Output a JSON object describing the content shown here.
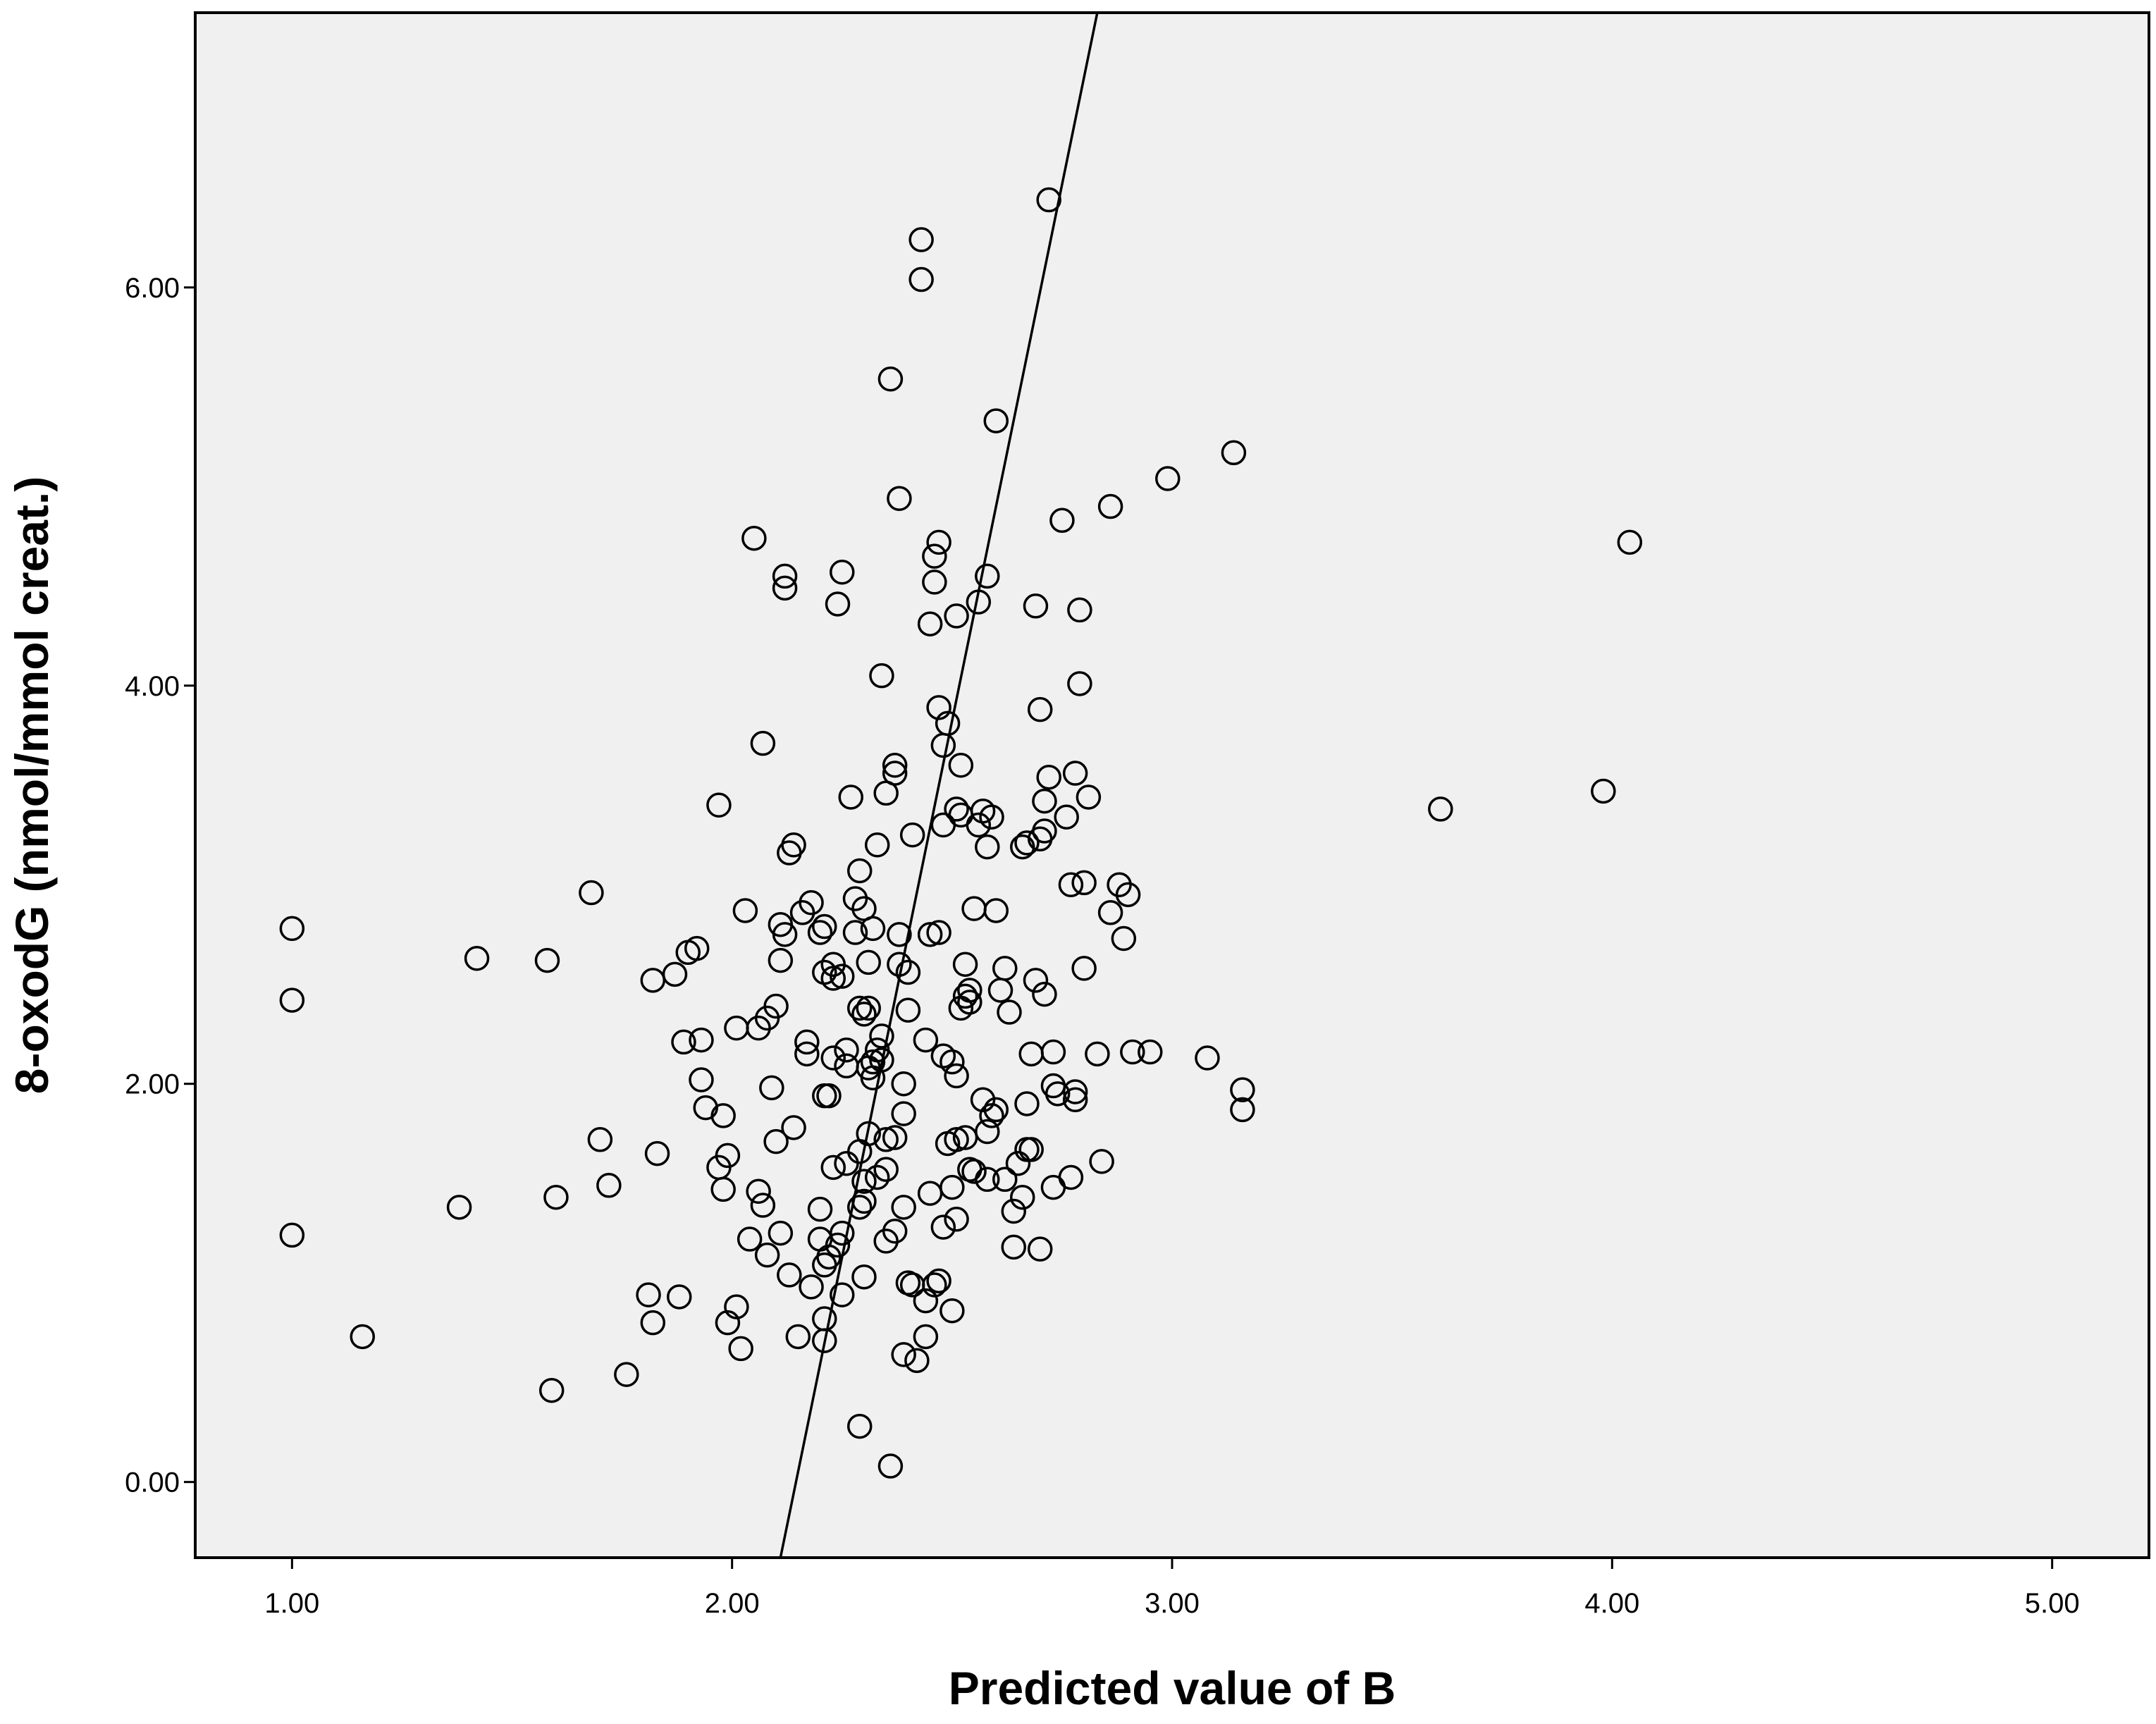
{
  "chart_data": {
    "type": "scatter",
    "xlabel": "Predicted value of B",
    "ylabel": "8-oxodG (nmol/mmol creat.)",
    "xlim": [
      0.78,
      5.22
    ],
    "ylim": [
      -0.38,
      7.38
    ],
    "x_ticks": [
      {
        "value": 1,
        "label": "1.00"
      },
      {
        "value": 2,
        "label": "2.00"
      },
      {
        "value": 3,
        "label": "3.00"
      },
      {
        "value": 4,
        "label": "4.00"
      },
      {
        "value": 5,
        "label": "5.00"
      }
    ],
    "y_ticks": [
      {
        "value": 0,
        "label": "0.00"
      },
      {
        "value": 2,
        "label": "2.00"
      },
      {
        "value": 4,
        "label": "4.00"
      },
      {
        "value": 6,
        "label": "6.00"
      }
    ],
    "grid": false,
    "legend": "none",
    "plot_background": "#f0f0f0",
    "marker": "open-circle",
    "reference_line": {
      "x1": 2.11,
      "y1": -0.38,
      "x2": 2.83,
      "y2": 7.38
    },
    "points": [
      [
        1.0,
        2.78
      ],
      [
        1.0,
        2.42
      ],
      [
        1.0,
        1.24
      ],
      [
        1.16,
        0.73
      ],
      [
        1.38,
        1.38
      ],
      [
        1.42,
        2.63
      ],
      [
        1.58,
        2.62
      ],
      [
        1.59,
        0.46
      ],
      [
        1.6,
        1.43
      ],
      [
        1.68,
        2.96
      ],
      [
        1.7,
        1.72
      ],
      [
        1.72,
        1.49
      ],
      [
        1.76,
        0.54
      ],
      [
        1.81,
        0.94
      ],
      [
        1.82,
        0.8
      ],
      [
        1.82,
        2.52
      ],
      [
        1.83,
        1.65
      ],
      [
        1.87,
        2.55
      ],
      [
        1.88,
        0.93
      ],
      [
        1.89,
        2.21
      ],
      [
        1.9,
        2.66
      ],
      [
        1.92,
        2.68
      ],
      [
        1.93,
        2.22
      ],
      [
        1.93,
        2.02
      ],
      [
        1.94,
        1.88
      ],
      [
        1.97,
        3.4
      ],
      [
        1.97,
        1.58
      ],
      [
        1.98,
        1.47
      ],
      [
        1.98,
        1.84
      ],
      [
        1.99,
        1.64
      ],
      [
        1.99,
        0.8
      ],
      [
        2.01,
        2.28
      ],
      [
        2.01,
        0.88
      ],
      [
        2.02,
        0.67
      ],
      [
        2.03,
        2.87
      ],
      [
        2.04,
        1.22
      ],
      [
        2.05,
        4.74
      ],
      [
        2.06,
        1.46
      ],
      [
        2.06,
        2.28
      ],
      [
        2.07,
        3.71
      ],
      [
        2.07,
        1.39
      ],
      [
        2.08,
        1.14
      ],
      [
        2.08,
        2.33
      ],
      [
        2.09,
        1.98
      ],
      [
        2.1,
        2.39
      ],
      [
        2.1,
        1.71
      ],
      [
        2.11,
        2.8
      ],
      [
        2.11,
        1.25
      ],
      [
        2.11,
        2.62
      ],
      [
        2.12,
        4.55
      ],
      [
        2.12,
        4.49
      ],
      [
        2.12,
        2.75
      ],
      [
        2.13,
        3.16
      ],
      [
        2.13,
        1.04
      ],
      [
        2.14,
        1.78
      ],
      [
        2.14,
        3.2
      ],
      [
        2.15,
        0.73
      ],
      [
        2.16,
        2.86
      ],
      [
        2.17,
        2.21
      ],
      [
        2.17,
        2.15
      ],
      [
        2.18,
        2.91
      ],
      [
        2.18,
        0.98
      ],
      [
        2.2,
        1.37
      ],
      [
        2.2,
        1.22
      ],
      [
        2.2,
        2.76
      ],
      [
        2.21,
        2.79
      ],
      [
        2.21,
        2.56
      ],
      [
        2.21,
        1.94
      ],
      [
        2.21,
        1.09
      ],
      [
        2.21,
        0.82
      ],
      [
        2.21,
        0.71
      ],
      [
        2.22,
        1.94
      ],
      [
        2.22,
        1.13
      ],
      [
        2.23,
        2.6
      ],
      [
        2.23,
        2.53
      ],
      [
        2.23,
        1.58
      ],
      [
        2.23,
        2.13
      ],
      [
        2.24,
        1.19
      ],
      [
        2.24,
        4.41
      ],
      [
        2.25,
        1.25
      ],
      [
        2.25,
        2.54
      ],
      [
        2.25,
        4.57
      ],
      [
        2.25,
        0.94
      ],
      [
        2.26,
        2.09
      ],
      [
        2.26,
        1.6
      ],
      [
        2.26,
        2.17
      ],
      [
        2.27,
        3.44
      ],
      [
        2.28,
        2.93
      ],
      [
        2.28,
        2.76
      ],
      [
        2.29,
        2.38
      ],
      [
        2.29,
        1.66
      ],
      [
        2.29,
        1.38
      ],
      [
        2.29,
        0.28
      ],
      [
        2.29,
        3.07
      ],
      [
        2.3,
        1.03
      ],
      [
        2.3,
        1.41
      ],
      [
        2.3,
        1.51
      ],
      [
        2.3,
        2.35
      ],
      [
        2.3,
        2.88
      ],
      [
        2.31,
        2.61
      ],
      [
        2.31,
        1.75
      ],
      [
        2.31,
        2.38
      ],
      [
        2.31,
        2.08
      ],
      [
        2.32,
        2.03
      ],
      [
        2.32,
        2.11
      ],
      [
        2.32,
        2.78
      ],
      [
        2.33,
        1.53
      ],
      [
        2.33,
        3.2
      ],
      [
        2.33,
        2.17
      ],
      [
        2.34,
        4.05
      ],
      [
        2.34,
        2.24
      ],
      [
        2.34,
        2.12
      ],
      [
        2.35,
        1.57
      ],
      [
        2.35,
        1.72
      ],
      [
        2.35,
        1.21
      ],
      [
        2.35,
        3.46
      ],
      [
        2.36,
        5.54
      ],
      [
        2.36,
        0.08
      ],
      [
        2.37,
        1.73
      ],
      [
        2.37,
        1.26
      ],
      [
        2.37,
        3.6
      ],
      [
        2.37,
        3.56
      ],
      [
        2.38,
        2.75
      ],
      [
        2.38,
        4.94
      ],
      [
        2.38,
        2.6
      ],
      [
        2.39,
        1.85
      ],
      [
        2.39,
        0.64
      ],
      [
        2.39,
        1.38
      ],
      [
        2.39,
        2.0
      ],
      [
        2.4,
        1.0
      ],
      [
        2.4,
        2.37
      ],
      [
        2.4,
        2.56
      ],
      [
        2.41,
        3.25
      ],
      [
        2.41,
        0.99
      ],
      [
        2.42,
        0.61
      ],
      [
        2.43,
        6.24
      ],
      [
        2.43,
        6.04
      ],
      [
        2.44,
        0.73
      ],
      [
        2.44,
        2.22
      ],
      [
        2.44,
        0.91
      ],
      [
        2.45,
        1.45
      ],
      [
        2.45,
        4.31
      ],
      [
        2.45,
        2.75
      ],
      [
        2.46,
        4.65
      ],
      [
        2.46,
        4.52
      ],
      [
        2.46,
        0.99
      ],
      [
        2.47,
        3.89
      ],
      [
        2.47,
        4.72
      ],
      [
        2.47,
        1.01
      ],
      [
        2.47,
        2.76
      ],
      [
        2.48,
        2.14
      ],
      [
        2.48,
        3.7
      ],
      [
        2.48,
        3.3
      ],
      [
        2.48,
        1.28
      ],
      [
        2.49,
        3.81
      ],
      [
        2.49,
        1.7
      ],
      [
        2.5,
        2.11
      ],
      [
        2.5,
        1.48
      ],
      [
        2.5,
        0.86
      ],
      [
        2.51,
        1.32
      ],
      [
        2.51,
        3.38
      ],
      [
        2.51,
        4.35
      ],
      [
        2.51,
        2.04
      ],
      [
        2.51,
        1.72
      ],
      [
        2.52,
        3.6
      ],
      [
        2.52,
        3.35
      ],
      [
        2.52,
        2.38
      ],
      [
        2.53,
        2.6
      ],
      [
        2.53,
        1.73
      ],
      [
        2.53,
        2.44
      ],
      [
        2.54,
        2.41
      ],
      [
        2.54,
        1.57
      ],
      [
        2.54,
        2.47
      ],
      [
        2.55,
        2.88
      ],
      [
        2.55,
        1.56
      ],
      [
        2.56,
        4.42
      ],
      [
        2.56,
        3.3
      ],
      [
        2.57,
        3.37
      ],
      [
        2.57,
        1.92
      ],
      [
        2.58,
        3.19
      ],
      [
        2.58,
        1.52
      ],
      [
        2.58,
        4.55
      ],
      [
        2.58,
        1.76
      ],
      [
        2.59,
        1.84
      ],
      [
        2.59,
        3.34
      ],
      [
        2.6,
        1.87
      ],
      [
        2.6,
        5.33
      ],
      [
        2.6,
        2.87
      ],
      [
        2.61,
        2.47
      ],
      [
        2.62,
        2.58
      ],
      [
        2.62,
        1.52
      ],
      [
        2.63,
        2.36
      ],
      [
        2.64,
        1.18
      ],
      [
        2.64,
        1.36
      ],
      [
        2.65,
        1.6
      ],
      [
        2.66,
        3.19
      ],
      [
        2.66,
        1.43
      ],
      [
        2.67,
        1.9
      ],
      [
        2.67,
        3.21
      ],
      [
        2.67,
        1.67
      ],
      [
        2.68,
        2.15
      ],
      [
        2.68,
        1.67
      ],
      [
        2.69,
        4.4
      ],
      [
        2.69,
        2.52
      ],
      [
        2.7,
        3.23
      ],
      [
        2.7,
        1.17
      ],
      [
        2.7,
        3.88
      ],
      [
        2.71,
        3.27
      ],
      [
        2.71,
        3.42
      ],
      [
        2.71,
        2.45
      ],
      [
        2.72,
        3.54
      ],
      [
        2.72,
        6.44
      ],
      [
        2.73,
        2.16
      ],
      [
        2.73,
        1.48
      ],
      [
        2.73,
        1.99
      ],
      [
        2.74,
        1.95
      ],
      [
        2.75,
        4.83
      ],
      [
        2.76,
        3.34
      ],
      [
        2.77,
        3.0
      ],
      [
        2.77,
        1.53
      ],
      [
        2.78,
        3.56
      ],
      [
        2.78,
        1.92
      ],
      [
        2.78,
        1.96
      ],
      [
        2.79,
        4.38
      ],
      [
        2.79,
        4.01
      ],
      [
        2.8,
        2.58
      ],
      [
        2.8,
        3.01
      ],
      [
        2.81,
        3.44
      ],
      [
        2.83,
        2.15
      ],
      [
        2.84,
        1.61
      ],
      [
        2.86,
        4.9
      ],
      [
        2.86,
        2.86
      ],
      [
        2.88,
        3.0
      ],
      [
        2.89,
        2.73
      ],
      [
        2.9,
        2.95
      ],
      [
        2.91,
        2.16
      ],
      [
        2.95,
        2.16
      ],
      [
        2.99,
        5.04
      ],
      [
        3.08,
        2.13
      ],
      [
        3.14,
        5.17
      ],
      [
        3.16,
        1.97
      ],
      [
        3.16,
        1.87
      ],
      [
        3.61,
        3.38
      ],
      [
        3.98,
        3.47
      ],
      [
        4.04,
        4.72
      ]
    ]
  }
}
